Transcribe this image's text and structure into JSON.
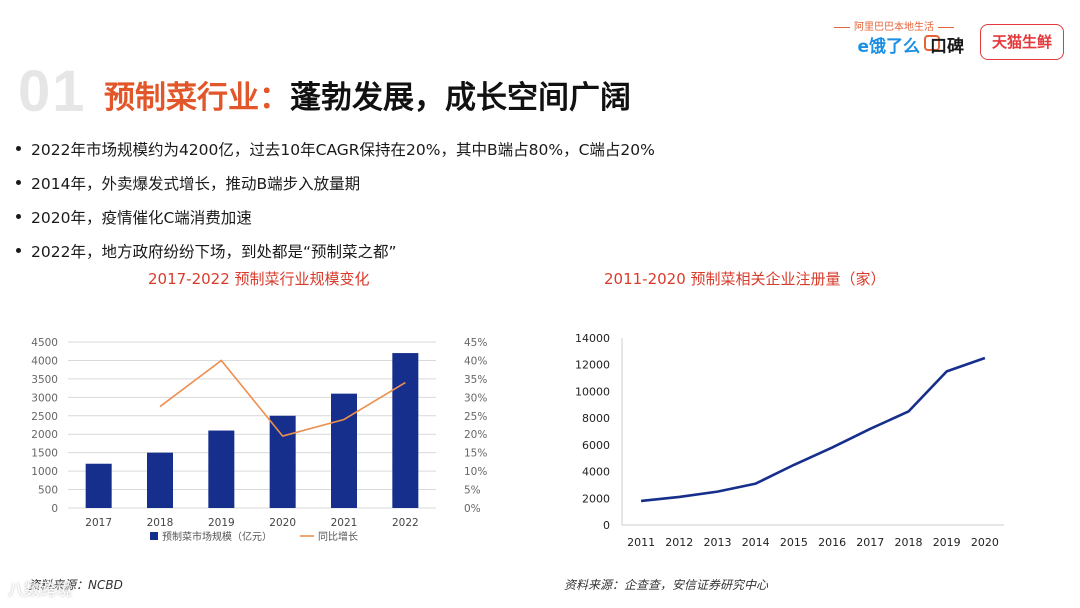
{
  "header": {
    "section_number": "01",
    "title_accent": "预制菜行业：",
    "title_rest": "蓬勃发展，成长空间广阔"
  },
  "logos": {
    "slogan": "阿里巴巴本地生活",
    "eleme": "e饿了么",
    "koubei": "口碑",
    "tmall_fresh": "天猫生鲜"
  },
  "bullets": [
    "2022年市场规模约为4200亿，过去10年CAGR保持在20%，其中B端占80%，C端占20%",
    "2014年，外卖爆发式增长，推动B端步入放量期",
    "2020年，疫情催化C端消费加速",
    "2022年，地方政府纷纷下场，到处都是“预制菜之都”"
  ],
  "left_chart_title": "2017-2022 预制菜行业规模变化",
  "right_chart_title": "2011-2020 预制菜相关企业注册量（家）",
  "left_source": "资料来源：NCBD",
  "right_source": "资料来源：企查查，安信证券研究中心",
  "watermark": "八数跨境",
  "colors": {
    "bar": "#162f8c",
    "line": "#ed8f4e",
    "accent": "#e2572a",
    "chart_title": "#d93b2b"
  },
  "chart_data": [
    {
      "type": "bar",
      "title": "2017-2022 预制菜行业规模变化",
      "categories": [
        "2017",
        "2018",
        "2019",
        "2020",
        "2021",
        "2022"
      ],
      "series": [
        {
          "name": "预制菜市场规模（亿元）",
          "type": "bar",
          "axis": "left",
          "values": [
            1200,
            1500,
            2100,
            2500,
            3100,
            4200
          ]
        },
        {
          "name": "同比增长",
          "type": "line",
          "axis": "right",
          "values": [
            null,
            0.275,
            0.4,
            0.195,
            0.24,
            0.34
          ]
        }
      ],
      "ylim": [
        0,
        4500
      ],
      "yticks": [
        "0",
        "500",
        "1000",
        "1500",
        "2000",
        "2500",
        "3000",
        "3500",
        "4000",
        "4500"
      ],
      "y2lim": [
        0,
        0.45
      ],
      "y2ticks": [
        "0%",
        "5%",
        "10%",
        "15%",
        "20%",
        "25%",
        "30%",
        "35%",
        "40%",
        "45%"
      ],
      "legend": [
        "预制菜市场规模（亿元）",
        "同比增长"
      ],
      "grid": true
    },
    {
      "type": "line",
      "title": "2011-2020 预制菜相关企业注册量（家）",
      "categories": [
        "2011",
        "2012",
        "2013",
        "2014",
        "2015",
        "2016",
        "2017",
        "2018",
        "2019",
        "2020"
      ],
      "values": [
        1800,
        2100,
        2500,
        3100,
        4500,
        5800,
        7200,
        8500,
        11500,
        12500
      ],
      "ylim": [
        0,
        14000
      ],
      "yticks": [
        "0",
        "2000",
        "4000",
        "6000",
        "8000",
        "10000",
        "12000",
        "14000"
      ],
      "grid": false
    }
  ]
}
